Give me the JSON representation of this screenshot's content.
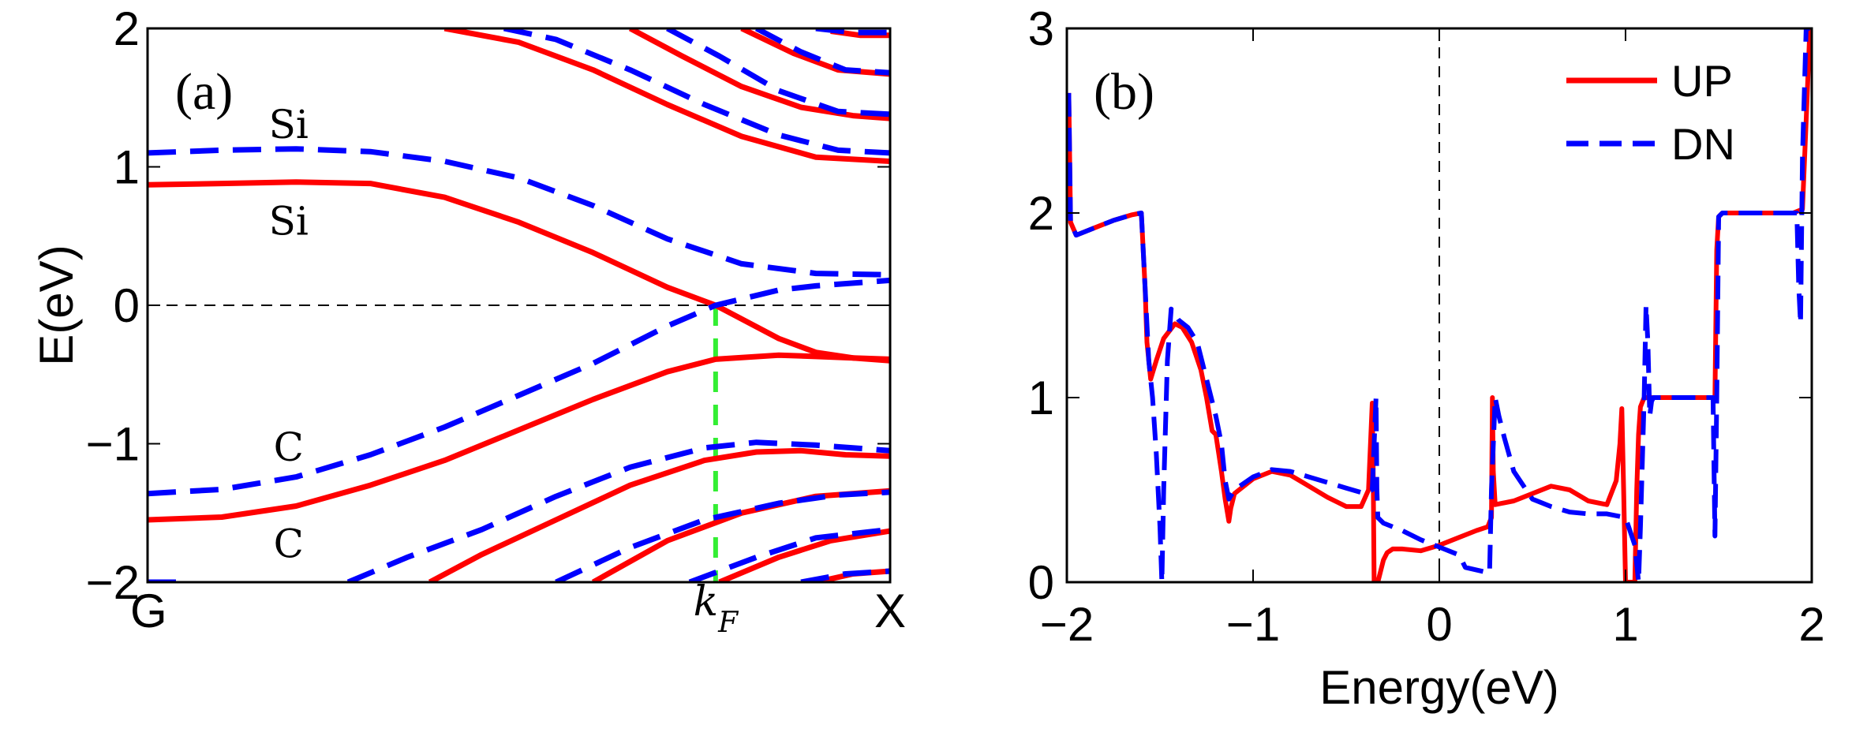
{
  "chart_data": [
    {
      "type": "line",
      "panel_label": "(a)",
      "ylabel": "E(eV)",
      "ylim": [
        -2,
        2
      ],
      "xlim": [
        0,
        1
      ],
      "xticks": [
        {
          "x": 0,
          "label": "G"
        },
        {
          "x": 0.765,
          "label": "k_F"
        },
        {
          "x": 1,
          "label": "X"
        }
      ],
      "yticks": [
        -2,
        -1,
        0,
        1,
        2
      ],
      "fermi_line_y": 0,
      "kF_x": 0.765,
      "band_labels": [
        {
          "text": "Si",
          "x": 0.19,
          "y": 1.3
        },
        {
          "text": "Si",
          "x": 0.19,
          "y": 0.6
        },
        {
          "text": "C",
          "x": 0.19,
          "y": -1.03
        },
        {
          "text": "C",
          "x": 0.19,
          "y": -1.73
        }
      ],
      "series": [
        {
          "color": "#ff0000",
          "style": "solid",
          "x": [
            0,
            0.1,
            0.2,
            0.3,
            0.4,
            0.5,
            0.6,
            0.7,
            0.765,
            0.85,
            0.9,
            0.95,
            1.0
          ],
          "values": [
            0.87,
            0.88,
            0.89,
            0.88,
            0.78,
            0.6,
            0.38,
            0.13,
            0.0,
            -0.24,
            -0.34,
            -0.38,
            -0.39
          ]
        },
        {
          "color": "#ff0000",
          "style": "solid",
          "x": [
            0,
            0.1,
            0.2,
            0.3,
            0.4,
            0.5,
            0.6,
            0.7,
            0.765,
            0.85,
            0.9,
            0.95,
            1.0
          ],
          "values": [
            -1.55,
            -1.53,
            -1.45,
            -1.3,
            -1.12,
            -0.9,
            -0.68,
            -0.48,
            -0.39,
            -0.36,
            -0.37,
            -0.38,
            -0.4
          ]
        },
        {
          "color": "#ff0000",
          "style": "solid",
          "x": [
            0.38,
            0.45,
            0.55,
            0.65,
            0.75,
            0.82,
            0.88,
            0.94,
            1.0
          ],
          "values": [
            -2.0,
            -1.8,
            -1.55,
            -1.3,
            -1.12,
            -1.06,
            -1.05,
            -1.08,
            -1.09
          ]
        },
        {
          "color": "#ff0000",
          "style": "solid",
          "x": [
            0.6,
            0.7,
            0.8,
            0.9,
            1.0
          ],
          "values": [
            -2.0,
            -1.7,
            -1.5,
            -1.38,
            -1.34
          ]
        },
        {
          "color": "#ff0000",
          "style": "solid",
          "x": [
            0.77,
            0.85,
            0.92,
            1.0
          ],
          "values": [
            -2.0,
            -1.82,
            -1.7,
            -1.63
          ]
        },
        {
          "color": "#ff0000",
          "style": "solid",
          "x": [
            0.9,
            0.95,
            1.0
          ],
          "values": [
            -2.0,
            -1.94,
            -1.92
          ]
        },
        {
          "color": "#ff0000",
          "style": "solid",
          "x": [
            0.4,
            0.5,
            0.6,
            0.7,
            0.8,
            0.9,
            1.0
          ],
          "values": [
            2.0,
            1.9,
            1.7,
            1.45,
            1.22,
            1.07,
            1.04
          ]
        },
        {
          "color": "#ff0000",
          "style": "solid",
          "x": [
            0.65,
            0.72,
            0.8,
            0.88,
            0.95,
            1.0
          ],
          "values": [
            2.0,
            1.8,
            1.58,
            1.43,
            1.37,
            1.35
          ]
        },
        {
          "color": "#ff0000",
          "style": "solid",
          "x": [
            0.8,
            0.87,
            0.93,
            1.0
          ],
          "values": [
            2.0,
            1.82,
            1.7,
            1.67
          ]
        },
        {
          "color": "#ff0000",
          "style": "solid",
          "x": [
            0.92,
            0.96,
            1.0
          ],
          "values": [
            1.98,
            1.95,
            1.95
          ]
        },
        {
          "color": "#0000ff",
          "style": "dashed",
          "x": [
            0,
            0.1,
            0.2,
            0.3,
            0.4,
            0.5,
            0.6,
            0.7,
            0.8,
            0.9,
            1.0
          ],
          "values": [
            1.1,
            1.12,
            1.13,
            1.11,
            1.04,
            0.92,
            0.72,
            0.48,
            0.3,
            0.23,
            0.22
          ]
        },
        {
          "color": "#0000ff",
          "style": "dashed",
          "x": [
            0,
            0.1,
            0.2,
            0.3,
            0.4,
            0.5,
            0.6,
            0.7,
            0.765,
            0.85,
            0.9,
            1.0
          ],
          "values": [
            -1.36,
            -1.33,
            -1.24,
            -1.08,
            -0.88,
            -0.65,
            -0.42,
            -0.15,
            0.0,
            0.11,
            0.14,
            0.18
          ]
        },
        {
          "color": "#0000ff",
          "style": "dashed",
          "x": [
            0.27,
            0.35,
            0.45,
            0.55,
            0.65,
            0.75,
            0.82,
            0.9,
            1.0
          ],
          "values": [
            -2.0,
            -1.82,
            -1.62,
            -1.38,
            -1.17,
            -1.03,
            -0.99,
            -1.01,
            -1.05
          ]
        },
        {
          "color": "#0000ff",
          "style": "dashed",
          "x": [
            0.55,
            0.65,
            0.75,
            0.85,
            0.93,
            1.0
          ],
          "values": [
            -2.0,
            -1.75,
            -1.55,
            -1.43,
            -1.37,
            -1.35
          ]
        },
        {
          "color": "#0000ff",
          "style": "dashed",
          "x": [
            0.73,
            0.82,
            0.9,
            1.0
          ],
          "values": [
            -2.0,
            -1.82,
            -1.68,
            -1.62
          ]
        },
        {
          "color": "#0000ff",
          "style": "dashed",
          "x": [
            0.88,
            0.94,
            1.0
          ],
          "values": [
            -2.0,
            -1.94,
            -1.92
          ]
        },
        {
          "color": "#0000ff",
          "style": "dashed",
          "x": [
            0.0,
            0.05
          ],
          "values": [
            -2.0,
            -2.0
          ]
        },
        {
          "color": "#0000ff",
          "style": "dashed",
          "x": [
            0.48,
            0.55,
            0.65,
            0.75,
            0.85,
            0.93,
            1.0
          ],
          "values": [
            2.0,
            1.92,
            1.7,
            1.45,
            1.23,
            1.12,
            1.1
          ]
        },
        {
          "color": "#0000ff",
          "style": "dashed",
          "x": [
            0.7,
            0.77,
            0.85,
            0.93,
            1.0
          ],
          "values": [
            2.0,
            1.8,
            1.55,
            1.4,
            1.38
          ]
        },
        {
          "color": "#0000ff",
          "style": "dashed",
          "x": [
            0.82,
            0.88,
            0.94,
            1.0
          ],
          "values": [
            2.0,
            1.83,
            1.7,
            1.68
          ]
        },
        {
          "color": "#0000ff",
          "style": "dashed",
          "x": [
            0.9,
            0.95,
            1.0
          ],
          "values": [
            2.0,
            1.97,
            1.97
          ]
        }
      ]
    },
    {
      "type": "line",
      "panel_label": "(b)",
      "xlabel": "Energy(eV)",
      "xlim": [
        -2,
        2
      ],
      "ylim": [
        0,
        3
      ],
      "xticks": [
        -2,
        -1,
        0,
        1,
        2
      ],
      "yticks": [
        0,
        1,
        2,
        3
      ],
      "vertical_line_x": 0,
      "legend": {
        "position": "top-right",
        "entries": [
          {
            "label": "UP",
            "color": "#ff0000",
            "style": "solid"
          },
          {
            "label": "DN",
            "color": "#0000ff",
            "style": "dashed"
          }
        ]
      },
      "series": [
        {
          "name": "UP",
          "color": "#ff0000",
          "style": "solid",
          "x": [
            -1.99,
            -1.98,
            -1.95,
            -1.85,
            -1.75,
            -1.65,
            -1.6,
            -1.58,
            -1.57,
            -1.55,
            -1.52,
            -1.48,
            -1.42,
            -1.38,
            -1.33,
            -1.28,
            -1.25,
            -1.22,
            -1.2,
            -1.17,
            -1.15,
            -1.13,
            -1.12,
            -1.1,
            -1.0,
            -0.9,
            -0.8,
            -0.7,
            -0.6,
            -0.5,
            -0.42,
            -0.38,
            -0.36,
            -0.355,
            -0.35,
            -0.33,
            -0.3,
            -0.28,
            -0.25,
            -0.2,
            -0.1,
            0.0,
            0.1,
            0.2,
            0.26,
            0.28,
            0.285,
            0.29,
            0.3,
            0.4,
            0.5,
            0.6,
            0.7,
            0.8,
            0.9,
            0.95,
            0.97,
            0.98,
            0.99,
            1.0,
            1.02,
            1.05,
            1.06,
            1.07,
            1.08,
            1.1,
            1.15,
            1.2,
            1.3,
            1.4,
            1.46,
            1.48,
            1.49,
            1.5,
            1.52,
            1.6,
            1.7,
            1.8,
            1.9,
            1.95,
            1.97,
            1.99
          ],
          "values": [
            2.65,
            1.95,
            1.88,
            1.92,
            1.96,
            1.99,
            2.0,
            1.6,
            1.3,
            1.1,
            1.2,
            1.32,
            1.4,
            1.38,
            1.3,
            1.15,
            1.0,
            0.82,
            0.8,
            0.6,
            0.45,
            0.33,
            0.4,
            0.48,
            0.56,
            0.6,
            0.58,
            0.52,
            0.46,
            0.41,
            0.41,
            0.5,
            0.97,
            0.6,
            0.0,
            0.0,
            0.12,
            0.16,
            0.18,
            0.18,
            0.17,
            0.2,
            0.24,
            0.28,
            0.3,
            0.35,
            1.0,
            0.6,
            0.42,
            0.44,
            0.48,
            0.52,
            0.5,
            0.44,
            0.42,
            0.55,
            0.75,
            0.94,
            0.5,
            0.0,
            0.0,
            0.0,
            0.5,
            0.8,
            0.95,
            1.0,
            1.0,
            1.0,
            1.0,
            1.0,
            1.0,
            1.0,
            1.8,
            1.98,
            2.0,
            2.0,
            2.0,
            2.0,
            2.0,
            2.02,
            2.5,
            3.0
          ]
        },
        {
          "name": "DN",
          "color": "#0000ff",
          "style": "dashed",
          "x": [
            -1.99,
            -1.98,
            -1.95,
            -1.85,
            -1.75,
            -1.65,
            -1.6,
            -1.58,
            -1.56,
            -1.54,
            -1.52,
            -1.5,
            -1.49,
            -1.48,
            -1.46,
            -1.44,
            -1.42,
            -1.4,
            -1.35,
            -1.3,
            -1.25,
            -1.2,
            -1.17,
            -1.15,
            -1.13,
            -1.1,
            -1.0,
            -0.9,
            -0.8,
            -0.7,
            -0.6,
            -0.5,
            -0.4,
            -0.36,
            -0.34,
            -0.335,
            -0.33,
            -0.3,
            -0.2,
            -0.1,
            0.0,
            0.1,
            0.12,
            0.14,
            0.27,
            0.28,
            0.3,
            0.32,
            0.35,
            0.4,
            0.5,
            0.6,
            0.7,
            0.8,
            0.9,
            1.0,
            1.05,
            1.07,
            1.08,
            1.1,
            1.11,
            1.12,
            1.13,
            1.14,
            1.15,
            1.2,
            1.3,
            1.4,
            1.47,
            1.48,
            1.49,
            1.5,
            1.52,
            1.6,
            1.7,
            1.8,
            1.9,
            1.92,
            1.93,
            1.94,
            1.95,
            1.97,
            1.99
          ],
          "values": [
            2.65,
            1.95,
            1.88,
            1.92,
            1.96,
            1.99,
            2.0,
            1.6,
            1.2,
            1.0,
            0.7,
            0.3,
            0.0,
            0.5,
            1.2,
            1.48,
            1.45,
            1.42,
            1.38,
            1.3,
            1.1,
            0.9,
            0.75,
            0.55,
            0.45,
            0.5,
            0.57,
            0.61,
            0.6,
            0.57,
            0.54,
            0.51,
            0.48,
            0.5,
            1.0,
            0.5,
            0.35,
            0.32,
            0.28,
            0.23,
            0.19,
            0.15,
            0.12,
            0.08,
            0.05,
            0.5,
            1.0,
            0.9,
            0.78,
            0.6,
            0.45,
            0.41,
            0.38,
            0.37,
            0.37,
            0.35,
            0.2,
            0.0,
            0.3,
            1.0,
            1.5,
            1.3,
            0.9,
            0.98,
            1.0,
            1.0,
            1.0,
            1.0,
            1.0,
            0.25,
            1.0,
            1.98,
            2.0,
            2.0,
            2.0,
            2.0,
            2.0,
            2.0,
            1.6,
            1.4,
            2.3,
            3.0,
            3.0
          ]
        }
      ]
    }
  ]
}
